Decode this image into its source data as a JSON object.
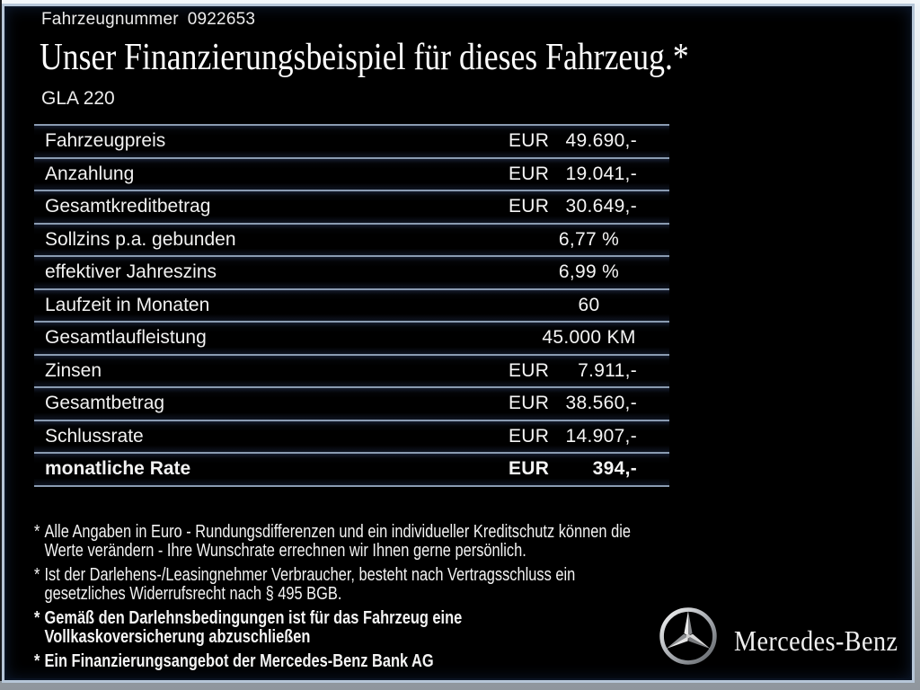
{
  "frame": {
    "border_color": "#b6c6d8",
    "background": "#000000",
    "separator_color": "#8a9bb1"
  },
  "header": {
    "vehicle_number_label": "Fahrzeugnummer",
    "vehicle_number_value": "0922653",
    "title": "Unser Finanzierungsbeispiel für dieses Fahrzeug.*",
    "model": "GLA 220"
  },
  "finance_table": {
    "rows": [
      {
        "label": "Fahrzeugpreis",
        "currency": "EUR",
        "value": "49.690,-",
        "align": "right",
        "bold": false
      },
      {
        "label": "Anzahlung",
        "currency": "EUR",
        "value": "19.041,-",
        "align": "right",
        "bold": false
      },
      {
        "label": "Gesamtkreditbetrag",
        "currency": "EUR",
        "value": "30.649,-",
        "align": "right",
        "bold": false
      },
      {
        "label": "Sollzins p.a. gebunden",
        "currency": null,
        "value": "6,77 %",
        "align": "center",
        "bold": false
      },
      {
        "label": "effektiver Jahreszins",
        "currency": null,
        "value": "6,99 %",
        "align": "center",
        "bold": false
      },
      {
        "label": "Laufzeit in Monaten",
        "currency": null,
        "value": "60",
        "align": "center",
        "bold": false
      },
      {
        "label": "Gesamtlaufleistung",
        "currency": null,
        "value": "45.000 KM",
        "align": "center",
        "bold": false
      },
      {
        "label": "Zinsen",
        "currency": "EUR",
        "value": "7.911,-",
        "align": "right",
        "bold": false
      },
      {
        "label": "Gesamtbetrag",
        "currency": "EUR",
        "value": "38.560,-",
        "align": "right",
        "bold": false
      },
      {
        "label": "Schlussrate",
        "currency": "EUR",
        "value": "14.907,-",
        "align": "right",
        "bold": false
      },
      {
        "label": "monatliche Rate",
        "currency": "EUR",
        "value": "394,-",
        "align": "right",
        "bold": true
      }
    ]
  },
  "footnotes": [
    {
      "marker": "*",
      "bold": false,
      "lines": [
        "Alle Angaben in Euro - Rundungsdifferenzen und ein individueller Kreditschutz können die",
        "Werte verändern - Ihre Wunschrate errechnen wir Ihnen gerne persönlich."
      ]
    },
    {
      "marker": "*",
      "bold": false,
      "lines": [
        "Ist der Darlehens-/Leasingnehmer Verbraucher, besteht nach Vertragsschluss ein",
        "gesetzliches Widerrufsrecht nach § 495 BGB."
      ]
    },
    {
      "marker": "*",
      "bold": true,
      "lines": [
        "Gemäß den Darlehnsbedingungen ist für das Fahrzeug eine",
        "Vollkaskoversicherung abzuschließen"
      ]
    },
    {
      "marker": "*",
      "bold": true,
      "lines": [
        "Ein Finanzierungsangebot der Mercedes-Benz Bank AG"
      ]
    }
  ],
  "brand": {
    "logo_icon": "mercedes-star-icon",
    "wordmark": "Mercedes-Benz"
  }
}
